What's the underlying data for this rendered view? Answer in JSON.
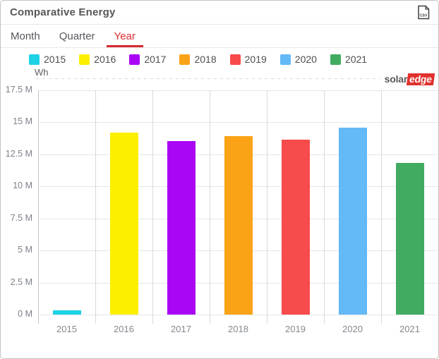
{
  "header": {
    "title": "Comparative Energy",
    "export_tooltip": "Export CSV"
  },
  "icons": {
    "export": "csv-file-icon"
  },
  "tabs": [
    {
      "label": "Month",
      "active": false
    },
    {
      "label": "Quarter",
      "active": false
    },
    {
      "label": "Year",
      "active": true
    }
  ],
  "brand": {
    "part1": "solar",
    "part2": "edge"
  },
  "chart_data": {
    "type": "bar",
    "title": "Comparative Energy",
    "ylabel": "Wh",
    "categories": [
      "2015",
      "2016",
      "2017",
      "2018",
      "2019",
      "2020",
      "2021"
    ],
    "values": [
      0.35,
      14.2,
      13.55,
      13.9,
      13.65,
      14.6,
      11.85
    ],
    "values_unit": "million Wh",
    "colors": [
      "#1ed2e6",
      "#fdef00",
      "#a906f5",
      "#fba317",
      "#f84b4b",
      "#64b9f7",
      "#41ab61"
    ],
    "ylim": [
      0,
      17.5
    ],
    "ytick_step": 2.5,
    "ytick_labels": [
      "0 M",
      "2.5 M",
      "5 M",
      "7.5 M",
      "10 M",
      "12.5 M",
      "15 M",
      "17.5 M"
    ],
    "legend_position": "top",
    "grid": true,
    "active_period": "Year"
  }
}
